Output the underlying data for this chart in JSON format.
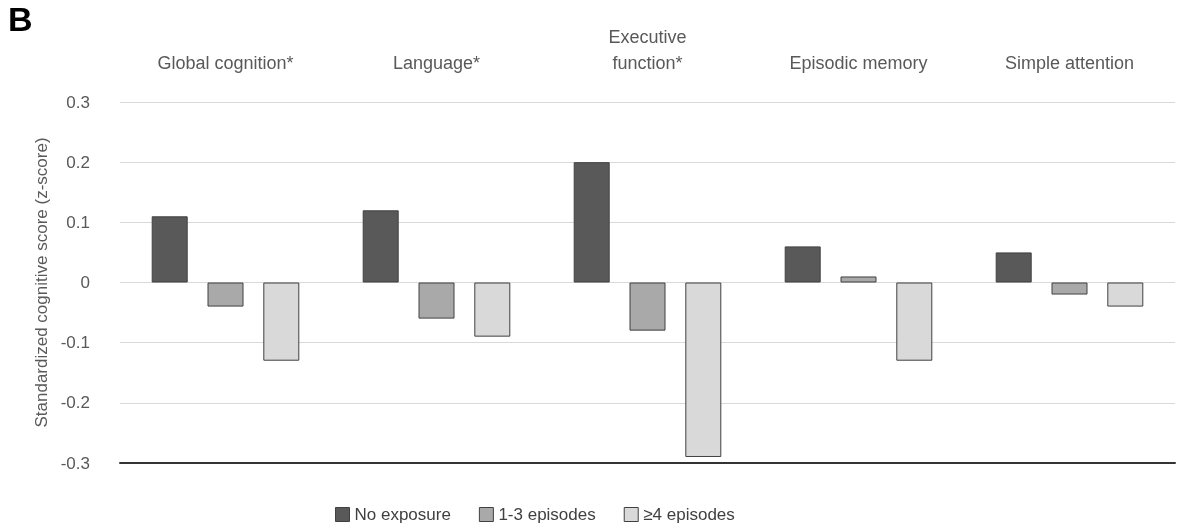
{
  "chart_data": {
    "type": "bar",
    "categories": [
      "Global cognition*",
      "Language*",
      "Executive\nfunction*",
      "Episodic memory",
      "Simple attention"
    ],
    "series": [
      {
        "name": "No exposure",
        "color": "#595959",
        "values": [
          0.11,
          0.12,
          0.2,
          0.06,
          0.05
        ]
      },
      {
        "name": "1-3 episodes",
        "color": "#a9a9a9",
        "values": [
          -0.04,
          -0.06,
          -0.08,
          0.01,
          -0.02
        ]
      },
      {
        "name": "≥4 episodes",
        "color": "#d9d9d9",
        "values": [
          -0.13,
          -0.09,
          -0.29,
          -0.13,
          -0.04
        ]
      }
    ],
    "ylabel": "Standardized cognitive score (z-score)",
    "ylim": [
      -0.3,
      0.3
    ],
    "yticks": [
      -0.3,
      -0.2,
      -0.1,
      0,
      0.1,
      0.2,
      0.3
    ],
    "grid": "y",
    "legend": "bottom",
    "annotations": [
      "B"
    ]
  }
}
